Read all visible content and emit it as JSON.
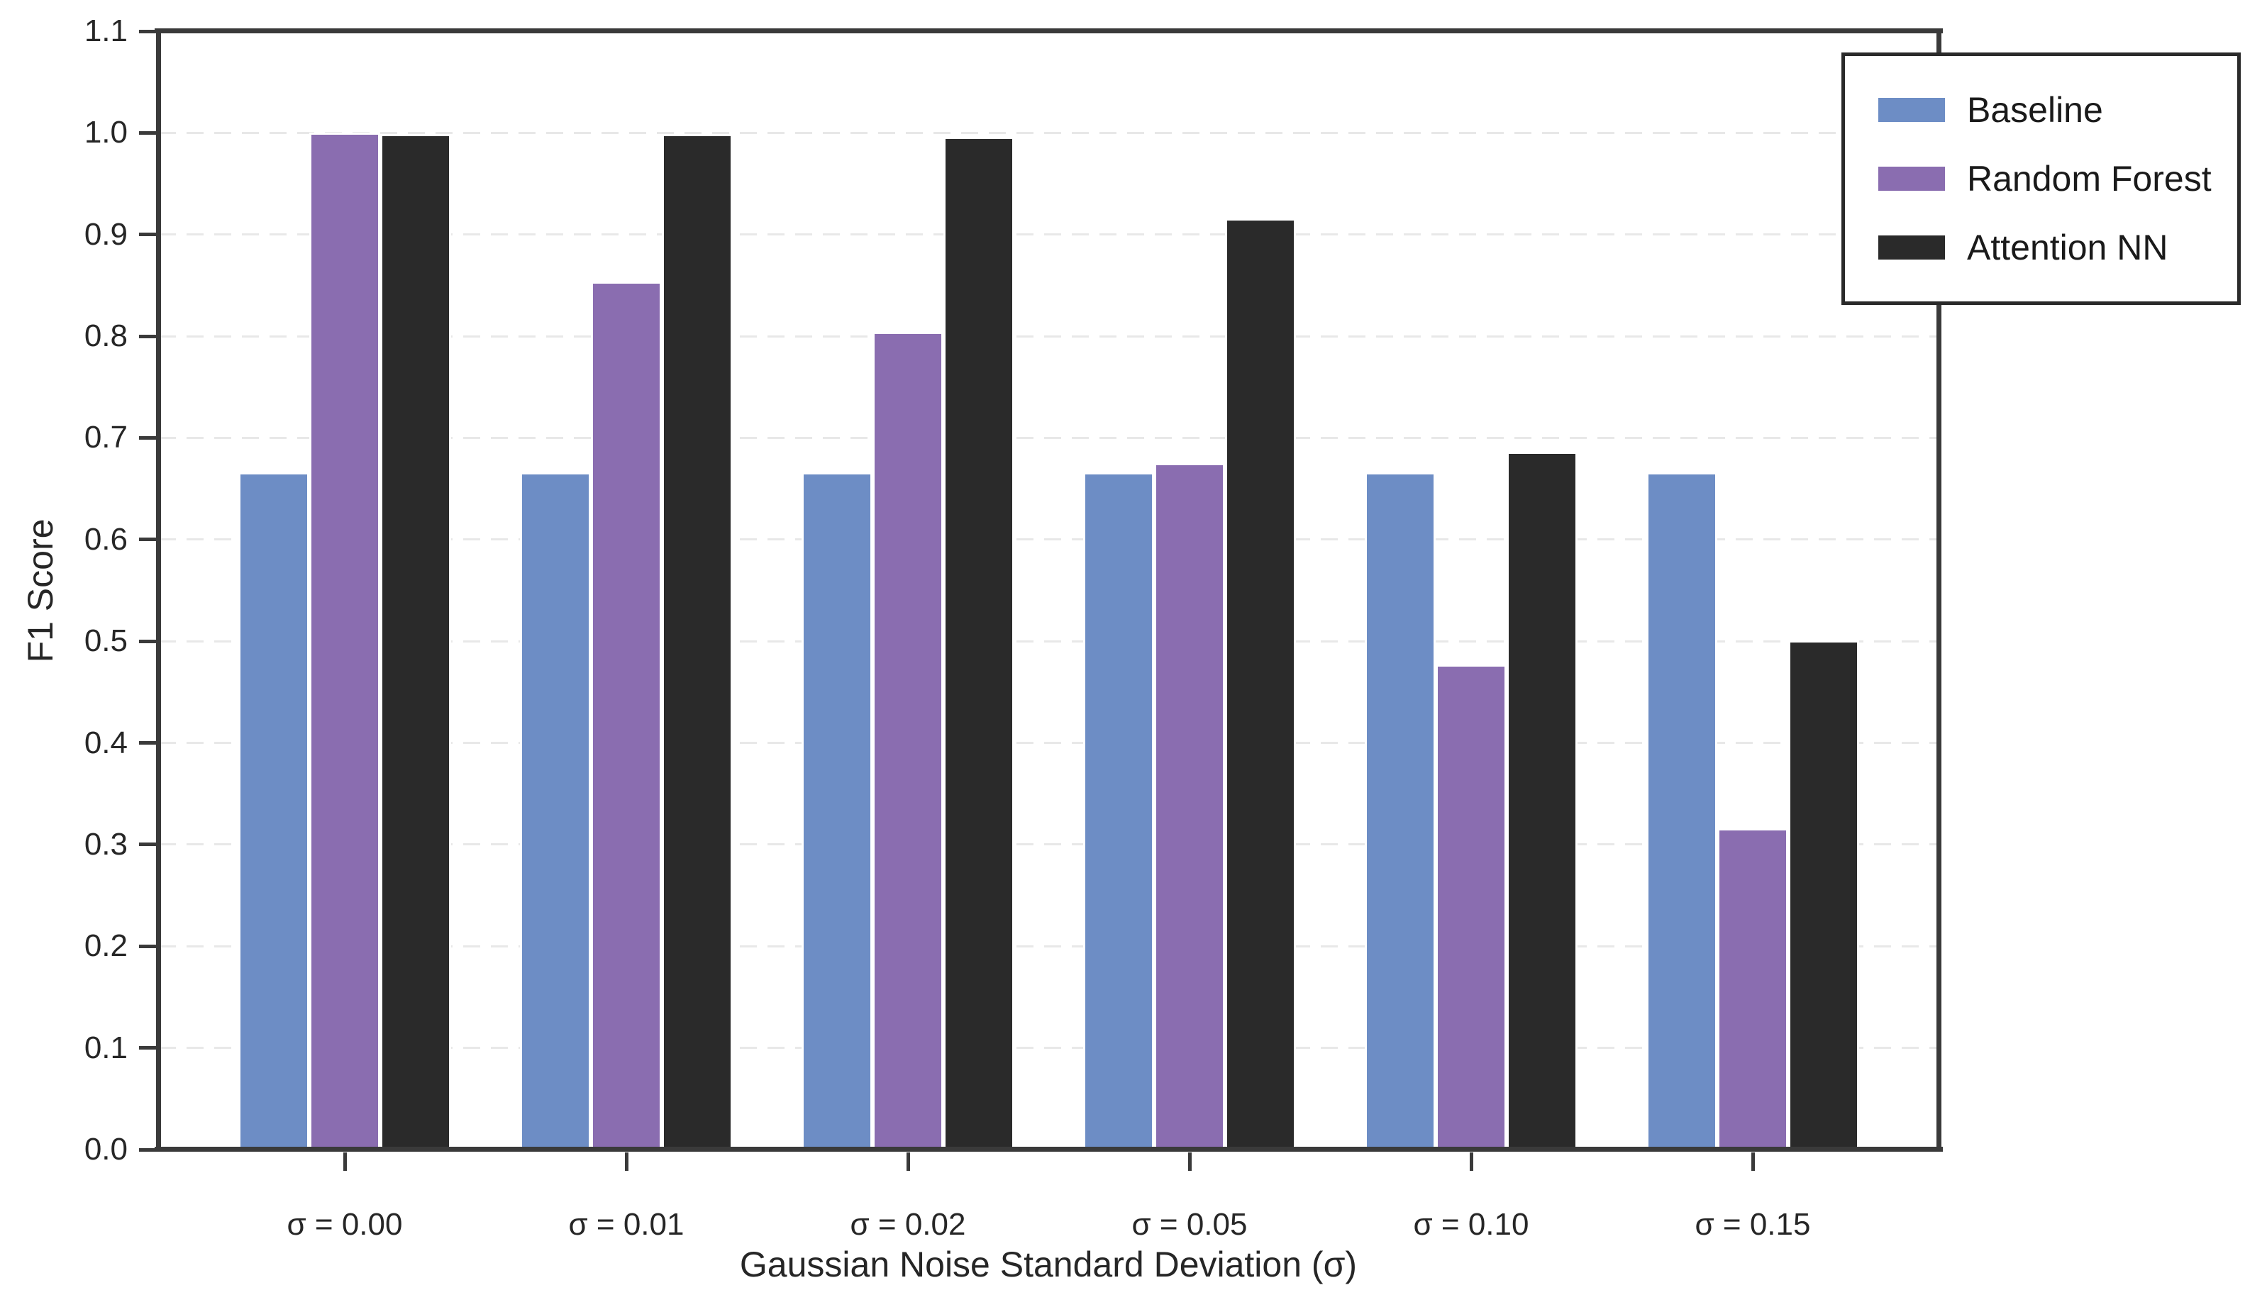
{
  "figure": {
    "background": "#ffffff"
  },
  "chart_data": {
    "type": "bar",
    "title": "",
    "xlabel": "Gaussian Noise Standard Deviation (σ)",
    "ylabel": "F1 Score",
    "categories": [
      "σ = 0.00",
      "σ = 0.01",
      "σ = 0.02",
      "σ = 0.05",
      "σ = 0.10",
      "σ = 0.15"
    ],
    "series": [
      {
        "name": "Baseline",
        "color": "#6D8DC5",
        "values": [
          0.664,
          0.664,
          0.664,
          0.664,
          0.664,
          0.664
        ]
      },
      {
        "name": "Random Forest",
        "color": "#8A6DB0",
        "values": [
          0.998,
          0.852,
          0.802,
          0.673,
          0.475,
          0.314
        ]
      },
      {
        "name": "Attention NN",
        "color": "#2A2A2A",
        "values": [
          0.997,
          0.997,
          0.994,
          0.914,
          0.684,
          0.499
        ]
      }
    ],
    "ylim": [
      0.0,
      1.1
    ],
    "yticks": [
      "0.0",
      "0.1",
      "0.2",
      "0.3",
      "0.4",
      "0.5",
      "0.6",
      "0.7",
      "0.8",
      "0.9",
      "1.0",
      "1.1"
    ],
    "grid": "horizontal-dashed",
    "grid_color": "#e8e8e8",
    "spine_color": "#3a3a3a",
    "legend_position": "upper right",
    "legend_entries": [
      "Baseline",
      "Random Forest",
      "Attention NN"
    ]
  }
}
